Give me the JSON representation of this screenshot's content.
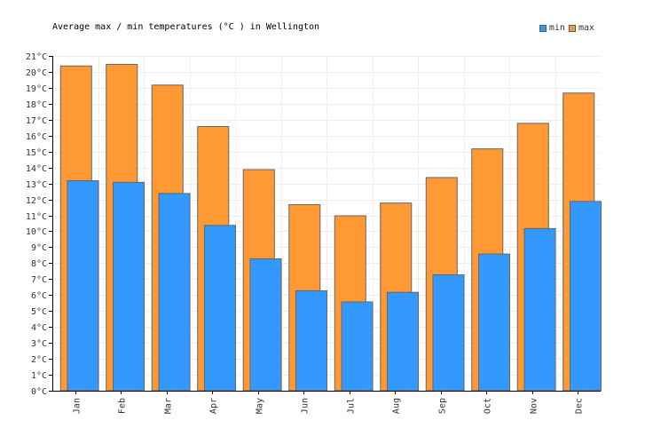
{
  "chart_data": {
    "type": "bar",
    "title": "Average max / min temperatures (°C ) in Wellington",
    "categories": [
      "Jan",
      "Feb",
      "Mar",
      "Apr",
      "May",
      "Jun",
      "Jul",
      "Aug",
      "Sep",
      "Oct",
      "Nov",
      "Dec"
    ],
    "series": [
      {
        "name": "min",
        "color": "#3399ff",
        "values": [
          13.2,
          13.1,
          12.4,
          10.4,
          8.3,
          6.3,
          5.6,
          6.2,
          7.3,
          8.6,
          10.2,
          11.9
        ]
      },
      {
        "name": "max",
        "color": "#ff9933",
        "values": [
          20.4,
          20.5,
          19.2,
          16.6,
          13.9,
          11.7,
          11.0,
          11.8,
          13.4,
          15.2,
          16.8,
          18.7
        ]
      }
    ],
    "ylim": [
      0,
      21
    ],
    "y_ticks": [
      "0°C",
      "1°C",
      "2°C",
      "3°C",
      "4°C",
      "5°C",
      "6°C",
      "7°C",
      "8°C",
      "9°C",
      "10°C",
      "11°C",
      "12°C",
      "13°C",
      "14°C",
      "15°C",
      "16°C",
      "17°C",
      "18°C",
      "19°C",
      "20°C",
      "21°C"
    ],
    "grid": true,
    "legend_position": "top-right"
  }
}
